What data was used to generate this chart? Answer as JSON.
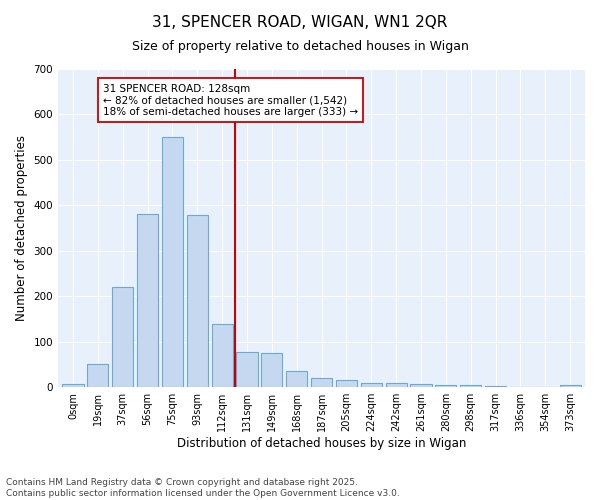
{
  "title": "31, SPENCER ROAD, WIGAN, WN1 2QR",
  "subtitle": "Size of property relative to detached houses in Wigan",
  "xlabel": "Distribution of detached houses by size in Wigan",
  "ylabel": "Number of detached properties",
  "bar_color": "#c5d8f0",
  "bar_edge_color": "#6aaad4",
  "background_color": "#e8f0fb",
  "vline_color": "#cc0000",
  "annotation_text": "31 SPENCER ROAD: 128sqm\n← 82% of detached houses are smaller (1,542)\n18% of semi-detached houses are larger (333) →",
  "annotation_box_facecolor": "white",
  "annotation_box_edgecolor": "#cc0000",
  "categories": [
    "0sqm",
    "19sqm",
    "37sqm",
    "56sqm",
    "75sqm",
    "93sqm",
    "112sqm",
    "131sqm",
    "149sqm",
    "168sqm",
    "187sqm",
    "205sqm",
    "224sqm",
    "242sqm",
    "261sqm",
    "280sqm",
    "298sqm",
    "317sqm",
    "336sqm",
    "354sqm",
    "373sqm"
  ],
  "bar_heights": [
    7,
    52,
    220,
    382,
    551,
    378,
    140,
    78,
    75,
    35,
    20,
    15,
    10,
    10,
    8,
    5,
    5,
    2,
    0,
    0,
    5
  ],
  "vline_index": 7,
  "ylim": [
    0,
    700
  ],
  "yticks": [
    0,
    100,
    200,
    300,
    400,
    500,
    600,
    700
  ],
  "footer": "Contains HM Land Registry data © Crown copyright and database right 2025.\nContains public sector information licensed under the Open Government Licence v3.0."
}
